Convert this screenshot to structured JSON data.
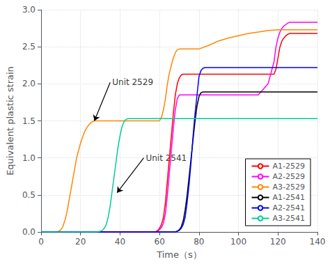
{
  "chart_data": {
    "type": "line",
    "xlabel": "Time（s）",
    "ylabel": "Equivalent plastic strain",
    "xlim": [
      0,
      140
    ],
    "ylim": [
      0.0,
      3.0
    ],
    "xticks": [
      0,
      20,
      40,
      60,
      80,
      100,
      120,
      140
    ],
    "yticks": [
      {
        "value": 0.0,
        "label": "0.0"
      },
      0.5,
      {
        "value": 1.0,
        "label": "1.0"
      },
      1.5,
      {
        "value": 2.0,
        "label": "2.0"
      },
      2.5,
      {
        "value": 3.0,
        "label": "3.0"
      }
    ],
    "grid": true,
    "legend": "lower right",
    "annotations": [
      {
        "text": "Unit 2529",
        "xy": [
          27,
          1.5
        ],
        "xytext": [
          35,
          2.02
        ]
      },
      {
        "text": "Unit 2541",
        "xy": [
          38.5,
          0.53
        ],
        "xytext": [
          52,
          1.0
        ]
      }
    ],
    "series": [
      {
        "name": "A1-2529",
        "color": "#ff0000",
        "x": [
          0,
          58,
          59,
          60,
          61,
          62,
          63,
          64,
          65,
          66,
          67,
          68,
          69,
          70,
          71,
          72,
          73,
          74,
          75,
          76,
          77,
          78,
          79,
          80,
          85,
          90,
          95,
          100,
          105,
          110,
          115,
          118,
          119,
          120,
          121,
          122,
          123,
          124,
          125,
          126,
          127,
          128,
          129,
          130,
          135,
          140
        ],
        "values": [
          0,
          0,
          0.02,
          0.05,
          0.1,
          0.2,
          0.4,
          0.7,
          1.0,
          1.3,
          1.6,
          1.85,
          2.0,
          2.08,
          2.12,
          2.13,
          2.13,
          2.13,
          2.13,
          2.13,
          2.13,
          2.13,
          2.13,
          2.13,
          2.13,
          2.13,
          2.13,
          2.13,
          2.13,
          2.13,
          2.13,
          2.13,
          2.2,
          2.35,
          2.5,
          2.58,
          2.62,
          2.65,
          2.67,
          2.68,
          2.68,
          2.68,
          2.68,
          2.68,
          2.68,
          2.68
        ]
      },
      {
        "name": "A2-2529",
        "color": "#ff00ff",
        "x": [
          0,
          58,
          59,
          60,
          61,
          62,
          63,
          64,
          65,
          66,
          67,
          68,
          69,
          70,
          71,
          72,
          73,
          74,
          75,
          80,
          85,
          90,
          95,
          100,
          105,
          110,
          115,
          118,
          119,
          120,
          121,
          122,
          123,
          124,
          125,
          126,
          127,
          128,
          129,
          130,
          135,
          140
        ],
        "values": [
          0,
          0,
          0.01,
          0.03,
          0.06,
          0.12,
          0.25,
          0.5,
          0.8,
          1.1,
          1.4,
          1.65,
          1.8,
          1.85,
          1.85,
          1.85,
          1.85,
          1.85,
          1.85,
          1.85,
          1.85,
          1.85,
          1.85,
          1.85,
          1.85,
          1.85,
          2.0,
          2.3,
          2.5,
          2.62,
          2.7,
          2.75,
          2.78,
          2.8,
          2.82,
          2.83,
          2.83,
          2.83,
          2.83,
          2.83,
          2.83,
          2.83
        ]
      },
      {
        "name": "A3-2529",
        "color": "#ff8800",
        "x": [
          0,
          8,
          9,
          10,
          11,
          12,
          13,
          14,
          15,
          16,
          17,
          18,
          19,
          20,
          21,
          22,
          23,
          24,
          25,
          26,
          27,
          28,
          29,
          30,
          31,
          32,
          33,
          34,
          35,
          40,
          50,
          60,
          61,
          62,
          63,
          64,
          65,
          66,
          67,
          68,
          69,
          70,
          71,
          72,
          73,
          74,
          75,
          76,
          77,
          78,
          79,
          80,
          85,
          90,
          95,
          100,
          105,
          110,
          115,
          120,
          125,
          130,
          135,
          140
        ],
        "values": [
          0,
          0,
          0.01,
          0.03,
          0.07,
          0.15,
          0.25,
          0.4,
          0.55,
          0.7,
          0.85,
          1.0,
          1.1,
          1.2,
          1.28,
          1.35,
          1.4,
          1.44,
          1.47,
          1.49,
          1.5,
          1.5,
          1.5,
          1.5,
          1.5,
          1.5,
          1.5,
          1.5,
          1.5,
          1.5,
          1.5,
          1.5,
          1.55,
          1.65,
          1.8,
          2.0,
          2.15,
          2.25,
          2.35,
          2.42,
          2.46,
          2.47,
          2.47,
          2.47,
          2.47,
          2.47,
          2.47,
          2.47,
          2.47,
          2.47,
          2.47,
          2.47,
          2.52,
          2.58,
          2.62,
          2.65,
          2.68,
          2.7,
          2.72,
          2.73,
          2.73,
          2.73,
          2.73,
          2.73
        ]
      },
      {
        "name": "A1-2541",
        "color": "#000000",
        "x": [
          0,
          68,
          69,
          70,
          71,
          72,
          73,
          74,
          75,
          76,
          77,
          78,
          79,
          80,
          81,
          82,
          83,
          84,
          85,
          90,
          95,
          100,
          105,
          110,
          115,
          120,
          125,
          130,
          135,
          140
        ],
        "values": [
          0,
          0,
          0.01,
          0.03,
          0.07,
          0.15,
          0.3,
          0.5,
          0.75,
          1.0,
          1.25,
          1.5,
          1.7,
          1.83,
          1.88,
          1.89,
          1.89,
          1.89,
          1.89,
          1.89,
          1.89,
          1.89,
          1.89,
          1.89,
          1.89,
          1.89,
          1.89,
          1.89,
          1.89,
          1.89
        ]
      },
      {
        "name": "A2-2541",
        "color": "#0000ff",
        "x": [
          0,
          68,
          69,
          70,
          71,
          72,
          73,
          74,
          75,
          76,
          77,
          78,
          79,
          80,
          81,
          82,
          83,
          84,
          85,
          90,
          95,
          100,
          105,
          110,
          115,
          120,
          125,
          130,
          135,
          140
        ],
        "values": [
          0,
          0,
          0.01,
          0.02,
          0.05,
          0.1,
          0.2,
          0.4,
          0.65,
          0.95,
          1.3,
          1.6,
          1.85,
          2.1,
          2.18,
          2.21,
          2.22,
          2.22,
          2.22,
          2.22,
          2.22,
          2.22,
          2.22,
          2.22,
          2.22,
          2.22,
          2.22,
          2.22,
          2.22,
          2.22
        ]
      },
      {
        "name": "A3-2541",
        "color": "#00cc99",
        "x": [
          0,
          28,
          29,
          30,
          31,
          32,
          33,
          34,
          35,
          36,
          37,
          38,
          39,
          40,
          41,
          42,
          43,
          44,
          45,
          50,
          55,
          60,
          65,
          70,
          75,
          80,
          85,
          90,
          95,
          100,
          105,
          110,
          115,
          120,
          125,
          130,
          135,
          140
        ],
        "values": [
          0,
          0,
          0.005,
          0.01,
          0.02,
          0.05,
          0.1,
          0.2,
          0.35,
          0.55,
          0.75,
          0.95,
          1.15,
          1.3,
          1.42,
          1.49,
          1.52,
          1.53,
          1.53,
          1.53,
          1.53,
          1.53,
          1.53,
          1.53,
          1.53,
          1.53,
          1.53,
          1.53,
          1.53,
          1.53,
          1.53,
          1.53,
          1.53,
          1.53,
          1.53,
          1.53,
          1.53,
          1.53
        ]
      }
    ]
  }
}
